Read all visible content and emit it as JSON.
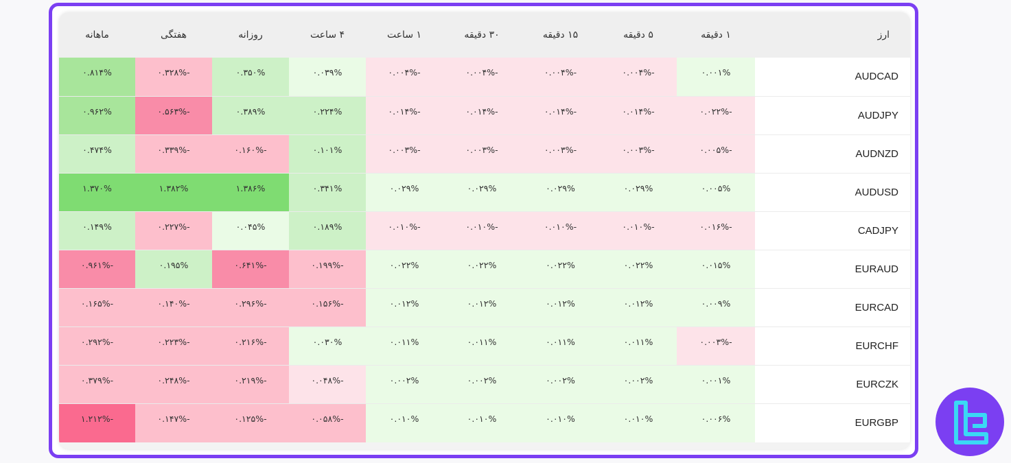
{
  "colors": {
    "frame": "#7b3ff2",
    "green_strong": "#7fdc72",
    "green_medium": "#a8e59b",
    "green_light": "#cdf1c7",
    "green_pale": "#eafbe6",
    "red_strong": "#fa6a8f",
    "red_medium": "#f98ca8",
    "red_light": "#fdbfcc",
    "red_pale": "#fde3e9",
    "logo_accent": "#3ad8f5"
  },
  "header": {
    "pair": "ارز",
    "columns": [
      "۱ دقیقه",
      "۵ دقیقه",
      "۱۵ دقیقه",
      "۳۰ دقیقه",
      "۱ ساعت",
      "۴ ساعت",
      "روزانه",
      "هفتگی",
      "ماهانه"
    ]
  },
  "rows": [
    {
      "pair": "AUDCAD",
      "values": [
        "۰.۰۰۱%",
        "-۰.۰۰۴%",
        "-۰.۰۰۴%",
        "-۰.۰۰۴%",
        "-۰.۰۰۴%",
        "۰.۰۳۹%",
        "۰.۳۵۰%",
        "-۰.۳۲۸%",
        "۰.۸۱۴%"
      ],
      "colors": [
        "#eafbe6",
        "#fde3e9",
        "#fde3e9",
        "#fde3e9",
        "#fde3e9",
        "#eafbe6",
        "#cdf1c7",
        "#fdbfcc",
        "#a8e59b"
      ]
    },
    {
      "pair": "AUDJPY",
      "values": [
        "-۰.۰۲۲%",
        "-۰.۰۱۴%",
        "-۰.۰۱۴%",
        "-۰.۰۱۴%",
        "-۰.۰۱۴%",
        "۰.۲۲۴%",
        "۰.۳۸۹%",
        "-۰.۵۶۳%",
        "۰.۹۶۲%"
      ],
      "colors": [
        "#fde3e9",
        "#fde3e9",
        "#fde3e9",
        "#fde3e9",
        "#fde3e9",
        "#cdf1c7",
        "#cdf1c7",
        "#f98ca8",
        "#a8e59b"
      ]
    },
    {
      "pair": "AUDNZD",
      "values": [
        "-۰.۰۰۵%",
        "-۰.۰۰۳%",
        "-۰.۰۰۳%",
        "-۰.۰۰۳%",
        "-۰.۰۰۳%",
        "۰.۱۰۱%",
        "-۰.۱۶۰%",
        "-۰.۳۳۹%",
        "۰.۴۷۴%"
      ],
      "colors": [
        "#fde3e9",
        "#fde3e9",
        "#fde3e9",
        "#fde3e9",
        "#fde3e9",
        "#cdf1c7",
        "#fdbfcc",
        "#fdbfcc",
        "#cdf1c7"
      ]
    },
    {
      "pair": "AUDUSD",
      "values": [
        "۰.۰۰۵%",
        "۰.۰۲۹%",
        "۰.۰۲۹%",
        "۰.۰۲۹%",
        "۰.۰۲۹%",
        "۰.۳۴۱%",
        "۱.۳۸۶%",
        "۱.۳۸۲%",
        "۱.۳۷۰%"
      ],
      "colors": [
        "#eafbe6",
        "#eafbe6",
        "#eafbe6",
        "#eafbe6",
        "#eafbe6",
        "#cdf1c7",
        "#7fdc72",
        "#7fdc72",
        "#7fdc72"
      ]
    },
    {
      "pair": "CADJPY",
      "values": [
        "-۰.۰۱۶%",
        "-۰.۰۱۰%",
        "-۰.۰۱۰%",
        "-۰.۰۱۰%",
        "-۰.۰۱۰%",
        "۰.۱۸۹%",
        "۰.۰۴۵%",
        "-۰.۲۲۷%",
        "۰.۱۴۹%"
      ],
      "colors": [
        "#fde3e9",
        "#fde3e9",
        "#fde3e9",
        "#fde3e9",
        "#fde3e9",
        "#cdf1c7",
        "#eafbe6",
        "#fdbfcc",
        "#cdf1c7"
      ]
    },
    {
      "pair": "EURAUD",
      "values": [
        "۰.۰۱۵%",
        "۰.۰۲۲%",
        "۰.۰۲۲%",
        "۰.۰۲۲%",
        "۰.۰۲۲%",
        "-۰.۱۹۹%",
        "-۰.۶۴۱%",
        "۰.۱۹۵%",
        "-۰.۹۶۱%"
      ],
      "colors": [
        "#eafbe6",
        "#eafbe6",
        "#eafbe6",
        "#eafbe6",
        "#eafbe6",
        "#fdbfcc",
        "#f98ca8",
        "#cdf1c7",
        "#f98ca8"
      ]
    },
    {
      "pair": "EURCAD",
      "values": [
        "۰.۰۰۹%",
        "۰.۰۱۲%",
        "۰.۰۱۲%",
        "۰.۰۱۲%",
        "۰.۰۱۲%",
        "-۰.۱۵۶%",
        "-۰.۲۹۶%",
        "-۰.۱۴۰%",
        "-۰.۱۶۵%"
      ],
      "colors": [
        "#eafbe6",
        "#eafbe6",
        "#eafbe6",
        "#eafbe6",
        "#eafbe6",
        "#fdbfcc",
        "#fdbfcc",
        "#fdbfcc",
        "#fdbfcc"
      ]
    },
    {
      "pair": "EURCHF",
      "values": [
        "-۰.۰۰۳%",
        "۰.۰۱۱%",
        "۰.۰۱۱%",
        "۰.۰۱۱%",
        "۰.۰۱۱%",
        "۰.۰۳۰%",
        "-۰.۲۱۶%",
        "-۰.۲۲۳%",
        "-۰.۲۹۲%"
      ],
      "colors": [
        "#fde3e9",
        "#eafbe6",
        "#eafbe6",
        "#eafbe6",
        "#eafbe6",
        "#eafbe6",
        "#fdbfcc",
        "#fdbfcc",
        "#fdbfcc"
      ]
    },
    {
      "pair": "EURCZK",
      "values": [
        "۰.۰۰۱%",
        "۰.۰۰۲%",
        "۰.۰۰۲%",
        "۰.۰۰۲%",
        "۰.۰۰۲%",
        "-۰.۰۴۸%",
        "-۰.۲۱۹%",
        "-۰.۲۴۸%",
        "-۰.۳۷۹%"
      ],
      "colors": [
        "#eafbe6",
        "#eafbe6",
        "#eafbe6",
        "#eafbe6",
        "#eafbe6",
        "#fde3e9",
        "#fdbfcc",
        "#fdbfcc",
        "#fdbfcc"
      ]
    },
    {
      "pair": "EURGBP",
      "values": [
        "۰.۰۰۶%",
        "۰.۰۱۰%",
        "۰.۰۱۰%",
        "۰.۰۱۰%",
        "۰.۰۱۰%",
        "-۰.۰۵۸%",
        "-۰.۱۲۵%",
        "-۰.۱۴۷%",
        "-۱.۲۱۲%"
      ],
      "colors": [
        "#eafbe6",
        "#eafbe6",
        "#eafbe6",
        "#eafbe6",
        "#eafbe6",
        "#fdbfcc",
        "#fdbfcc",
        "#fdbfcc",
        "#fa6a8f"
      ]
    }
  ]
}
